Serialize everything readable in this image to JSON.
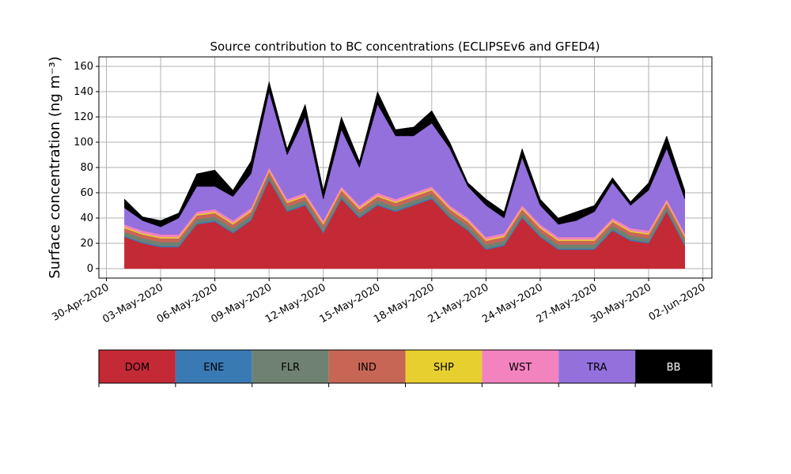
{
  "chart_data": {
    "type": "stacked_area",
    "title": "Source contribution to BC concentrations (ECLIPSEv6 and GFED4)",
    "y_label": "Surface concentration (ng m⁻³)",
    "x": [
      "2020-05-01",
      "2020-05-02",
      "2020-05-03",
      "2020-05-04",
      "2020-05-05",
      "2020-05-06",
      "2020-05-07",
      "2020-05-08",
      "2020-05-09",
      "2020-05-10",
      "2020-05-11",
      "2020-05-12",
      "2020-05-13",
      "2020-05-14",
      "2020-05-15",
      "2020-05-16",
      "2020-05-17",
      "2020-05-18",
      "2020-05-19",
      "2020-05-20",
      "2020-05-21",
      "2020-05-22",
      "2020-05-23",
      "2020-05-24",
      "2020-05-25",
      "2020-05-26",
      "2020-05-27",
      "2020-05-28",
      "2020-05-29",
      "2020-05-30",
      "2020-05-31",
      "2020-06-01"
    ],
    "series": [
      {
        "name": "DOM",
        "color": "#c42936",
        "values": [
          25,
          20,
          17,
          17,
          35,
          37,
          28,
          38,
          70,
          45,
          50,
          28,
          55,
          40,
          50,
          45,
          50,
          55,
          40,
          30,
          15,
          18,
          40,
          25,
          15,
          15,
          15,
          30,
          22,
          20,
          45,
          18
        ]
      },
      {
        "name": "ENE",
        "color": "#3a7ab4",
        "values": [
          1,
          1,
          1,
          1,
          1,
          1,
          1,
          1,
          1,
          1,
          1,
          1,
          1,
          1,
          1,
          1,
          1,
          1,
          1,
          1,
          1,
          1,
          1,
          1,
          1,
          1,
          1,
          1,
          1,
          1,
          1,
          1
        ]
      },
      {
        "name": "FLR",
        "color": "#6f8271",
        "values": [
          3,
          3,
          3,
          3,
          3,
          3,
          3,
          3,
          3,
          3,
          3,
          3,
          3,
          3,
          3,
          3,
          3,
          3,
          3,
          3,
          3,
          3,
          3,
          3,
          3,
          3,
          3,
          3,
          3,
          3,
          3,
          3
        ]
      },
      {
        "name": "IND",
        "color": "#c86656",
        "values": [
          3,
          3,
          3,
          3,
          3,
          3,
          3,
          3,
          3,
          3,
          3,
          3,
          3,
          3,
          3,
          3,
          3,
          3,
          3,
          3,
          3,
          3,
          3,
          3,
          3,
          3,
          3,
          3,
          3,
          3,
          3,
          3
        ]
      },
      {
        "name": "SHP",
        "color": "#e7cf2f",
        "values": [
          1,
          1,
          1,
          1,
          1,
          1,
          1,
          1,
          1,
          1,
          1,
          1,
          1,
          1,
          1,
          1,
          1,
          1,
          1,
          1,
          1,
          1,
          1,
          1,
          1,
          1,
          1,
          1,
          1,
          1,
          1,
          1
        ]
      },
      {
        "name": "WST",
        "color": "#f383bf",
        "values": [
          2,
          2,
          2,
          2,
          2,
          2,
          2,
          2,
          2,
          2,
          2,
          2,
          2,
          2,
          2,
          2,
          2,
          2,
          2,
          2,
          2,
          2,
          2,
          2,
          2,
          2,
          2,
          2,
          2,
          2,
          2,
          2
        ]
      },
      {
        "name": "TRA",
        "color": "#9370dc",
        "values": [
          13,
          8,
          6,
          13,
          20,
          18,
          19,
          27,
          60,
          35,
          60,
          17,
          45,
          30,
          70,
          50,
          45,
          50,
          45,
          25,
          25,
          12,
          38,
          15,
          10,
          13,
          20,
          28,
          18,
          32,
          40,
          27
        ]
      },
      {
        "name": "BB",
        "color": "#000000",
        "values": [
          7,
          3,
          5,
          4,
          10,
          13,
          5,
          10,
          8,
          5,
          10,
          7,
          10,
          5,
          10,
          5,
          7,
          10,
          5,
          3,
          5,
          5,
          7,
          5,
          5,
          7,
          5,
          4,
          3,
          6,
          10,
          7
        ]
      }
    ],
    "xlim": [
      "2020-04-29T14:00Z",
      "2020-06-02T12:00Z"
    ],
    "xticks": [
      {
        "value": "2020-04-30",
        "label": "30-Apr-2020"
      },
      {
        "value": "2020-05-03",
        "label": "03-May-2020"
      },
      {
        "value": "2020-05-06",
        "label": "06-May-2020"
      },
      {
        "value": "2020-05-09",
        "label": "09-May-2020"
      },
      {
        "value": "2020-05-12",
        "label": "12-May-2020"
      },
      {
        "value": "2020-05-15",
        "label": "15-May-2020"
      },
      {
        "value": "2020-05-18",
        "label": "18-May-2020"
      },
      {
        "value": "2020-05-21",
        "label": "21-May-2020"
      },
      {
        "value": "2020-05-24",
        "label": "24-May-2020"
      },
      {
        "value": "2020-05-27",
        "label": "27-May-2020"
      },
      {
        "value": "2020-05-30",
        "label": "30-May-2020"
      },
      {
        "value": "2020-06-02",
        "label": "02-Jun-2020"
      }
    ],
    "ylim": [
      -7.5,
      167.5
    ],
    "yticks": [
      0,
      20,
      40,
      60,
      80,
      100,
      120,
      140,
      160
    ],
    "grid": true
  }
}
